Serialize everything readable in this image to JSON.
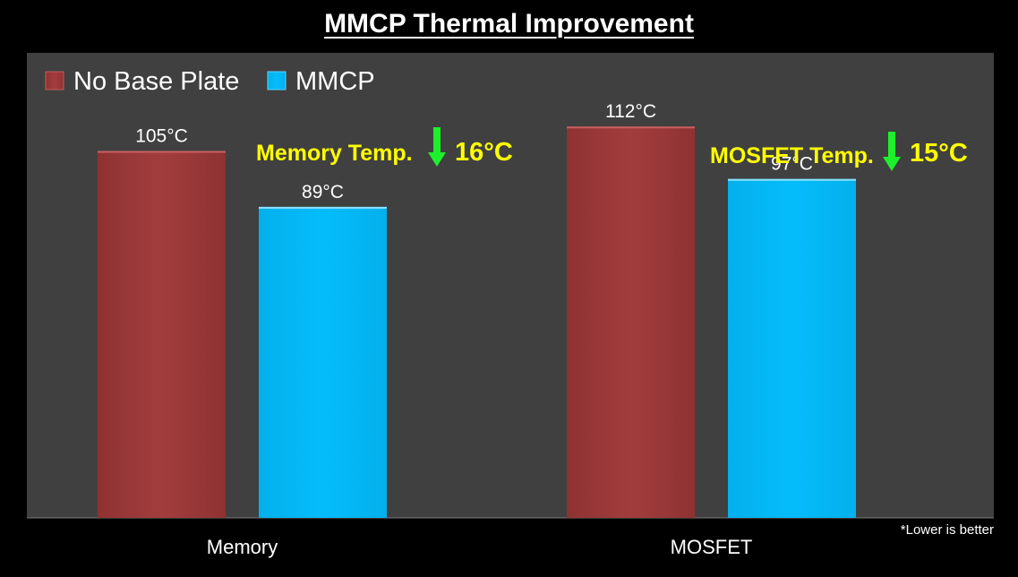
{
  "colors": {
    "background": "#000000",
    "plot_area": "#404040",
    "no_base_plate": "#a23d3d",
    "mmcp": "#05bcfb",
    "annotation_text": "#ffff00",
    "arrow": "#1cf02a"
  },
  "chart_data": {
    "type": "bar",
    "title": "MMCP Thermal Improvement",
    "xlabel": "",
    "ylabel": "",
    "categories": [
      "Memory",
      "MOSFET"
    ],
    "series": [
      {
        "name": "No Base Plate",
        "values": [
          105,
          112
        ],
        "labels": [
          "105°C",
          "112°C"
        ],
        "color": "#a23d3d"
      },
      {
        "name": "MMCP",
        "values": [
          89,
          97
        ],
        "labels": [
          "89°C",
          "97°C"
        ],
        "color": "#05bcfb"
      }
    ],
    "ylim": [
      0,
      130
    ],
    "grid": false,
    "legend_position": "top-left",
    "annotations": [
      {
        "category": "Memory",
        "text": "Memory Temp.",
        "arrow": "down-arrow-icon",
        "value": "16°C"
      },
      {
        "category": "MOSFET",
        "text": "MOSFET Temp.",
        "arrow": "down-arrow-icon",
        "value": "15°C"
      }
    ],
    "footnote": "*Lower is better"
  }
}
